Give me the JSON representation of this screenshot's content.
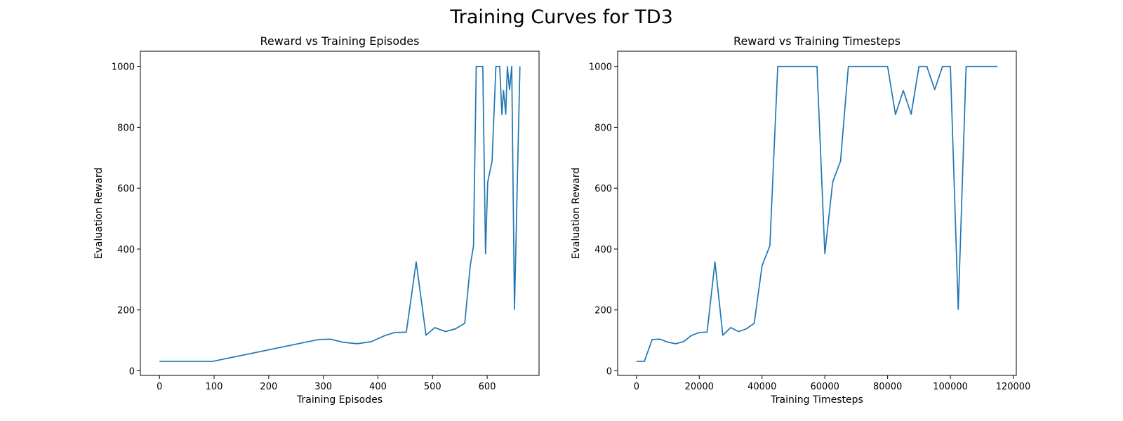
{
  "figure": {
    "suptitle": "Training Curves for TD3"
  },
  "colors": {
    "line": "#1f77b4",
    "axes": "#000000",
    "background": "#ffffff"
  },
  "chart_data": [
    {
      "type": "line",
      "title": "Reward vs Training Episodes",
      "xlabel": "Training Episodes",
      "ylabel": "Evaluation Reward",
      "xlim": [
        -35,
        695
      ],
      "ylim": [
        -15,
        1050
      ],
      "xticks": [
        0,
        100,
        200,
        300,
        400,
        500,
        600
      ],
      "yticks": [
        0,
        200,
        400,
        600,
        800,
        1000
      ],
      "grid": false,
      "legend": "none",
      "series": [
        {
          "x": [
            0,
            97,
            292,
            313,
            336,
            362,
            388,
            413,
            431,
            452,
            470,
            488,
            504,
            524,
            542,
            559,
            569,
            575,
            580,
            592,
            597,
            601,
            609,
            616,
            623,
            627,
            630,
            634,
            637,
            641,
            645,
            650,
            660
          ],
          "y": [
            31,
            31,
            103,
            104,
            94,
            89,
            96,
            116,
            126,
            127,
            358,
            117,
            142,
            129,
            138,
            156,
            345,
            411,
            1000,
            1000,
            385,
            620,
            689,
            1000,
            1000,
            842,
            921,
            843,
            1000,
            924,
            1000,
            202,
            1000
          ]
        }
      ]
    },
    {
      "type": "line",
      "title": "Reward vs Training Timesteps",
      "xlabel": "Training Timesteps",
      "ylabel": "Evaluation Reward",
      "xlim": [
        -6000,
        121000
      ],
      "ylim": [
        -15,
        1050
      ],
      "xticks": [
        0,
        20000,
        40000,
        60000,
        80000,
        100000,
        120000
      ],
      "yticks": [
        0,
        200,
        400,
        600,
        800,
        1000
      ],
      "grid": false,
      "legend": "none",
      "series": [
        {
          "x": [
            0,
            2500,
            5000,
            7500,
            10000,
            12500,
            15000,
            17500,
            20000,
            22500,
            25000,
            27500,
            30000,
            32500,
            35000,
            37500,
            40000,
            42500,
            45000,
            47500,
            50000,
            52500,
            55000,
            57500,
            60000,
            62500,
            65000,
            67500,
            70000,
            72500,
            75000,
            77500,
            80000,
            82500,
            85000,
            87500,
            90000,
            92500,
            95000,
            97500,
            100000,
            102500,
            105000,
            107500,
            110000,
            112500,
            115000
          ],
          "y": [
            31,
            31,
            103,
            104,
            94,
            89,
            96,
            116,
            126,
            127,
            358,
            117,
            142,
            129,
            138,
            156,
            345,
            411,
            1000,
            1000,
            1000,
            1000,
            1000,
            1000,
            385,
            620,
            689,
            1000,
            1000,
            1000,
            1000,
            1000,
            1000,
            842,
            921,
            843,
            1000,
            1000,
            924,
            1000,
            1000,
            202,
            1000,
            1000,
            1000,
            1000,
            1000
          ]
        }
      ]
    }
  ]
}
